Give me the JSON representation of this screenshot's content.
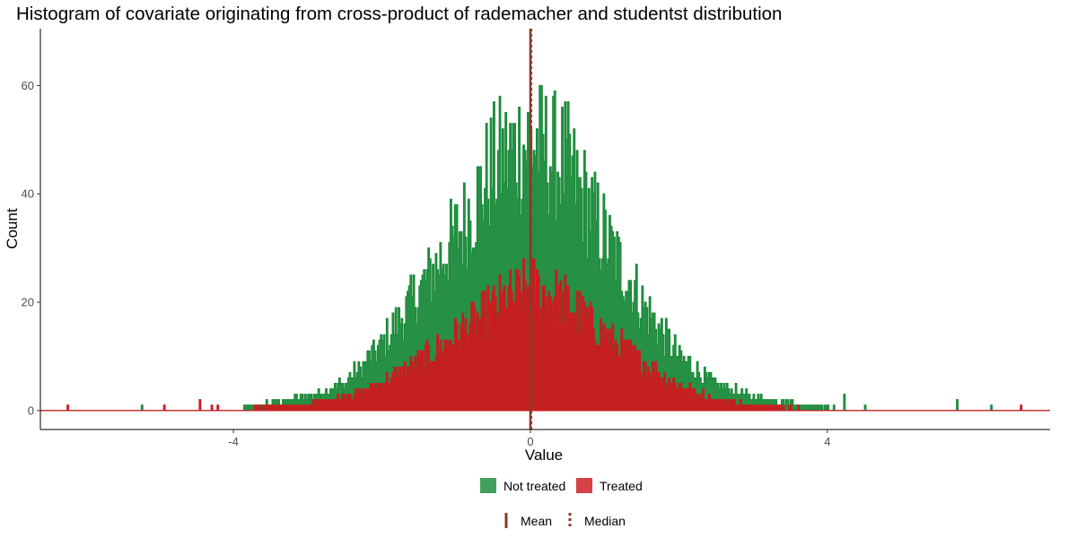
{
  "chart_data": {
    "type": "bar",
    "title": "Histogram of covariate originating from cross-product of rademacher and studentst distribution",
    "xlabel": "Value",
    "ylabel": "Count",
    "xlim": [
      -6.6,
      7.0
    ],
    "ylim": [
      -3.5,
      70.5
    ],
    "x_ticks": [
      -4,
      0,
      4
    ],
    "y_ticks": [
      0,
      20,
      40,
      60
    ],
    "x_tick_labels": [
      "-4",
      "0",
      "4"
    ],
    "y_tick_labels": [
      "0",
      "20",
      "40",
      "60"
    ],
    "grid": false,
    "bin_width": 0.02,
    "series": [
      {
        "name": "Not treated",
        "color": "#1a8a3a",
        "profile": {
          "x": [
            -4,
            -3.5,
            -3,
            -2.5,
            -2,
            -1.5,
            -1,
            -0.5,
            0,
            0.5,
            1,
            1.5,
            2,
            2.5,
            3,
            3.5,
            4,
            4.5
          ],
          "y": [
            0,
            1.5,
            2.5,
            5,
            12,
            22,
            32,
            45,
            50,
            45,
            32,
            20,
            10,
            5,
            2.5,
            1.5,
            0.5,
            0
          ]
        }
      },
      {
        "name": "Treated",
        "color": "#cc1a1f",
        "profile": {
          "x": [
            -4,
            -3.5,
            -3,
            -2.5,
            -2,
            -1.5,
            -1,
            -0.5,
            0,
            0.5,
            1,
            1.5,
            2,
            2.5,
            3,
            3.5,
            4,
            4.5
          ],
          "y": [
            0,
            0.7,
            1.2,
            2.5,
            5,
            9,
            14,
            19,
            23,
            20,
            14,
            9,
            4.5,
            2,
            1,
            0.5,
            0.2,
            0
          ]
        }
      }
    ],
    "isolated_bars": [
      {
        "x": -6.24,
        "y": 1,
        "series": "Treated"
      },
      {
        "x": -5.24,
        "y": 1,
        "series": "Not treated"
      },
      {
        "x": -4.94,
        "y": 1,
        "series": "Treated"
      },
      {
        "x": -4.46,
        "y": 2,
        "series": "Treated"
      },
      {
        "x": -4.3,
        "y": 1,
        "series": "Treated"
      },
      {
        "x": -4.22,
        "y": 1,
        "series": "Treated"
      },
      {
        "x": 4.22,
        "y": 3,
        "series": "Not treated"
      },
      {
        "x": 4.5,
        "y": 1,
        "series": "Not treated"
      },
      {
        "x": 5.74,
        "y": 2,
        "series": "Not treated"
      },
      {
        "x": 6.2,
        "y": 1,
        "series": "Not treated"
      },
      {
        "x": 6.6,
        "y": 1,
        "series": "Treated"
      }
    ],
    "reference_lines": [
      {
        "name": "Mean",
        "x": 0.0,
        "style": "solid",
        "color": "#8b3a2a"
      },
      {
        "name": "Median",
        "x": 0.01,
        "style": "dotted",
        "color": "#8b3a2a"
      }
    ],
    "legend_position": "bottom",
    "legend_fill": [
      {
        "label": "Not treated",
        "color": "#1a8a3a"
      },
      {
        "label": "Treated",
        "color": "#cc1a1f"
      }
    ],
    "legend_lines": [
      {
        "label": "Mean",
        "style": "solid"
      },
      {
        "label": "Median",
        "style": "dotted"
      }
    ]
  }
}
